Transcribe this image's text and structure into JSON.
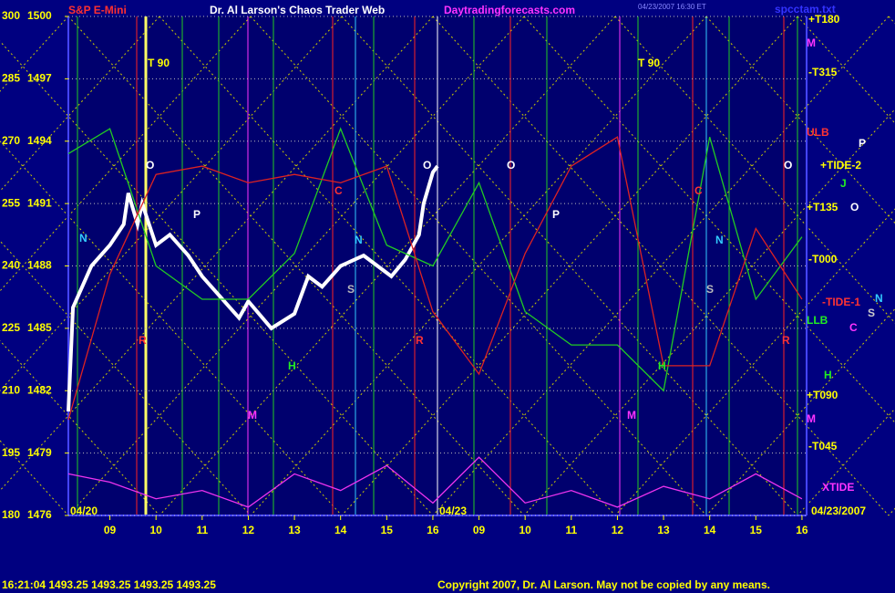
{
  "chart_data": {
    "type": "line",
    "title": "Dr. Al Larson's Chaos Trader Web",
    "subtitle": "S&P E-Mini",
    "site": "Daytradingforecasts.com",
    "stamp": "04/23/2007 16:30 ET",
    "file": "spcctam.txt",
    "date_left": "04/20",
    "date_mid": "04/23",
    "date_right": "04/23/2007",
    "status": "16:21:04  1493.25 1493.25 1493.25 1493.25",
    "copyright": "Copyright 2007, Dr. Al Larson. May not be copied by any means.",
    "annotations": [
      "T 90",
      "T 90",
      "O",
      "O",
      "O",
      "O",
      "P",
      "P",
      "N",
      "N",
      "N",
      "C",
      "C",
      "M",
      "M",
      "H",
      "H",
      "S",
      "S",
      "R",
      "R",
      "R"
    ],
    "right_labels": [
      "+T180",
      "M",
      "-T315",
      "ULB",
      "P",
      "+TIDE-2",
      "J",
      "+T135",
      "O",
      "-T000",
      "-TIDE-1",
      "N",
      "S",
      "C",
      "LLB",
      "H",
      "+T090",
      "M",
      "-T045",
      "XTIDE"
    ],
    "xlim": [
      8.1,
      24.1
    ],
    "xticks": [
      {
        "value": 9,
        "label": "09"
      },
      10,
      11,
      12,
      13,
      14,
      15,
      16,
      {
        "value": 17,
        "label": "09"
      },
      {
        "value": 18,
        "label": "10"
      },
      {
        "value": 19,
        "label": "11"
      },
      {
        "value": 20,
        "label": "12"
      },
      {
        "value": 21,
        "label": "13"
      },
      {
        "value": 22,
        "label": "14"
      },
      {
        "value": 23,
        "label": "15"
      },
      {
        "value": 24,
        "label": "16"
      }
    ],
    "ylim": [
      180,
      300
    ],
    "yticks": [
      300,
      285,
      270,
      255,
      240,
      225,
      210,
      195,
      180
    ],
    "y2lim": [
      1476,
      1500
    ],
    "y2ticks": [
      1500,
      1497,
      1494,
      1491,
      1488,
      1485,
      1482,
      1479,
      1476
    ],
    "x": [
      8.1,
      9,
      10,
      11,
      12,
      13,
      14,
      15,
      16,
      17,
      18,
      19,
      20,
      21,
      22,
      23,
      24
    ],
    "series": [
      {
        "color": "#ffffff",
        "axis": "y2",
        "x": [
          8.1,
          8.2,
          8.4,
          8.6,
          9.0,
          9.3,
          9.4,
          9.6,
          9.7,
          10,
          10.3,
          10.7,
          11,
          11.4,
          11.8,
          12.0,
          12.5,
          13,
          13.3,
          13.6,
          14,
          14.5,
          15.1,
          15.4,
          15.7,
          15.8,
          16.0,
          16.1
        ],
        "values": [
          1481,
          1486,
          1487,
          1488,
          1489,
          1490,
          1491.5,
          1490,
          1491,
          1489,
          1489.5,
          1488.5,
          1487.5,
          1486.5,
          1485.5,
          1486.3,
          1485,
          1485.7,
          1487.5,
          1487,
          1488,
          1488.5,
          1487.5,
          1488.3,
          1489.5,
          1491,
          1492.5,
          1492.8
        ]
      },
      {
        "color": "#22cc22",
        "values": [
          267,
          273,
          240,
          232,
          232,
          243,
          273,
          245,
          240,
          260,
          229,
          221,
          221,
          210,
          271,
          232,
          247
        ]
      },
      {
        "color": "#dd2222",
        "values": [
          203,
          238,
          262,
          264,
          260,
          262,
          260,
          264,
          229,
          214,
          243,
          264,
          271,
          216,
          216,
          249,
          232
        ]
      },
      {
        "color": "#ee33ee",
        "values": [
          190,
          188,
          184,
          186,
          182,
          190,
          186,
          192,
          183,
          194,
          183,
          186,
          182,
          187,
          184,
          190,
          184
        ]
      }
    ]
  }
}
